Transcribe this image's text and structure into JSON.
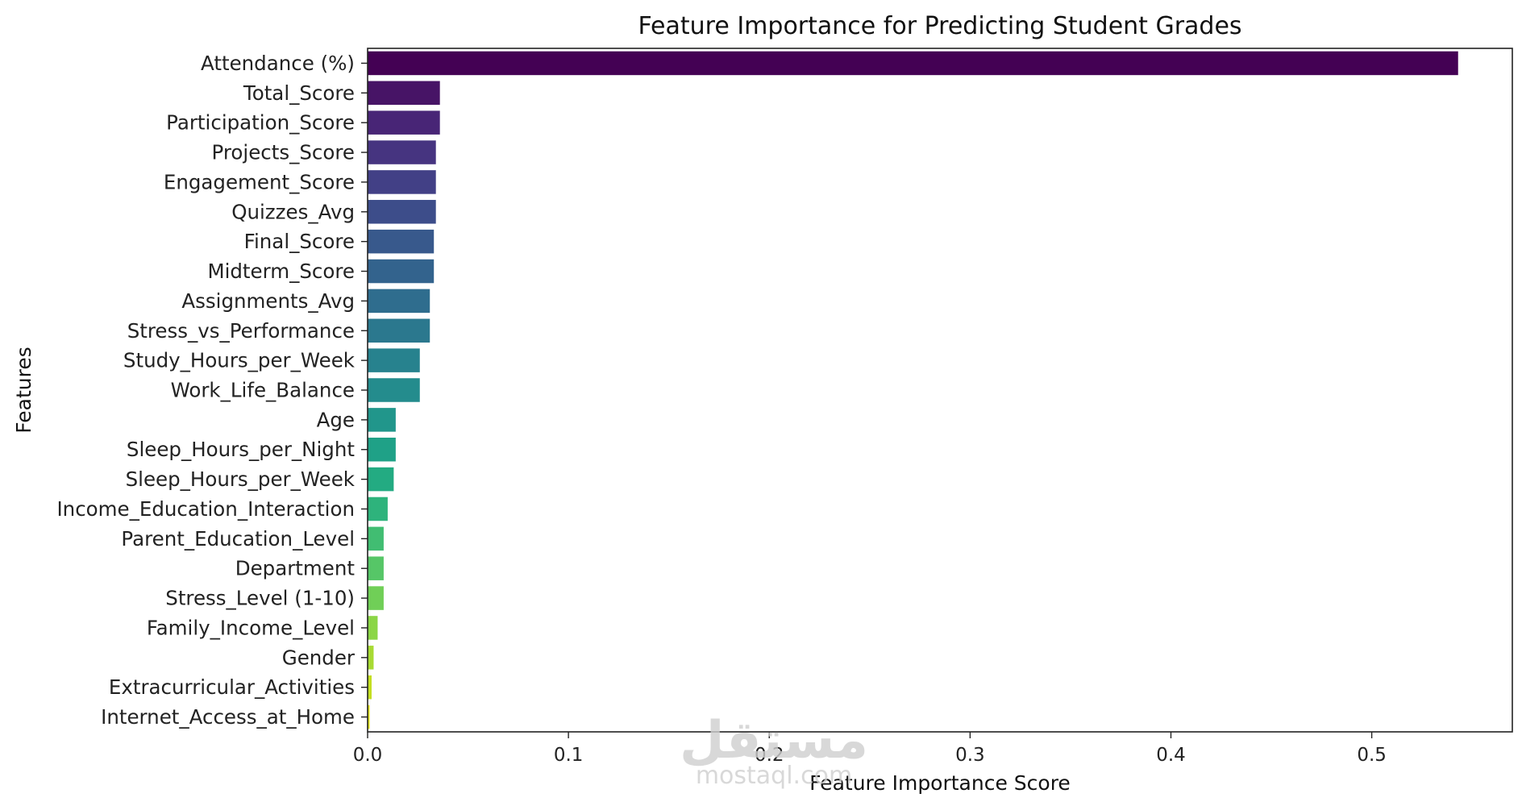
{
  "chart_data": {
    "type": "bar",
    "orientation": "horizontal",
    "title": "Feature Importance for Predicting Student Grades",
    "xlabel": "Feature Importance Score",
    "ylabel": "Features",
    "xlim": [
      0,
      0.57
    ],
    "xticks": [
      {
        "value": 0.0,
        "label": "0.0"
      },
      {
        "value": 0.1,
        "label": "0.1"
      },
      {
        "value": 0.2,
        "label": "0.2"
      },
      {
        "value": 0.3,
        "label": "0.3"
      },
      {
        "value": 0.4,
        "label": "0.4"
      },
      {
        "value": 0.5,
        "label": "0.5"
      }
    ],
    "grid": false,
    "colormap": "viridis",
    "categories": [
      "Attendance (%)",
      "Total_Score",
      "Participation_Score",
      "Projects_Score",
      "Engagement_Score",
      "Quizzes_Avg",
      "Final_Score",
      "Midterm_Score",
      "Assignments_Avg",
      "Stress_vs_Performance",
      "Study_Hours_per_Week",
      "Work_Life_Balance",
      "Age",
      "Sleep_Hours_per_Night",
      "Sleep_Hours_per_Week",
      "Income_Education_Interaction",
      "Parent_Education_Level",
      "Department",
      "Stress_Level (1-10)",
      "Family_Income_Level",
      "Gender",
      "Extracurricular_Activities",
      "Internet_Access_at_Home"
    ],
    "values": [
      0.543,
      0.036,
      0.036,
      0.034,
      0.034,
      0.034,
      0.033,
      0.033,
      0.031,
      0.031,
      0.026,
      0.026,
      0.014,
      0.014,
      0.013,
      0.01,
      0.008,
      0.008,
      0.008,
      0.005,
      0.003,
      0.002,
      0.001
    ],
    "colors": [
      "#440154",
      "#471466",
      "#482576",
      "#463480",
      "#424086",
      "#3d4d8a",
      "#38598c",
      "#33638d",
      "#2f6d8e",
      "#2b788e",
      "#27828e",
      "#248c8d",
      "#21968b",
      "#1fa187",
      "#23ab82",
      "#2eb37c",
      "#41bd72",
      "#56c667",
      "#70cf57",
      "#8bd646",
      "#a8db34",
      "#c5e021",
      "#e2e418"
    ]
  },
  "watermark": {
    "arabic": "مستقل",
    "latin": "mostaql.com"
  }
}
